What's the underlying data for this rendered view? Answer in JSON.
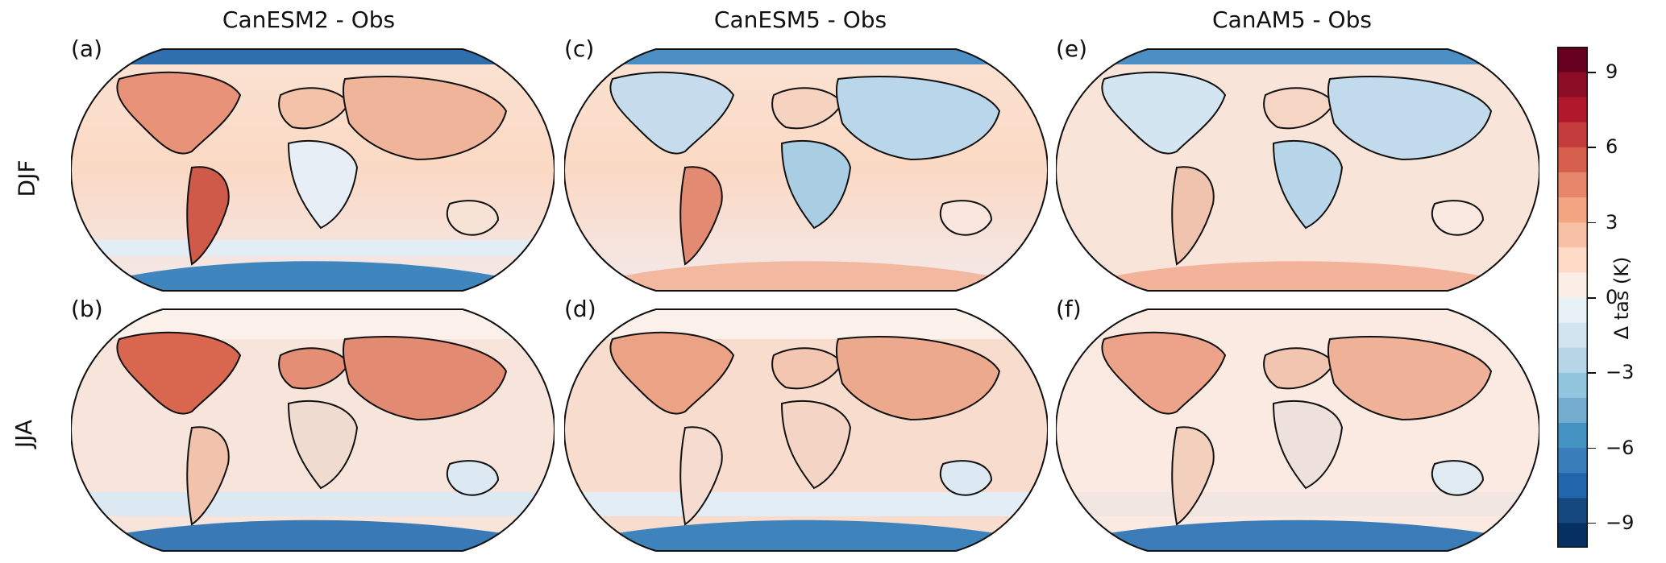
{
  "columns": [
    {
      "title": "CanESM2 - Obs"
    },
    {
      "title": "CanESM5 - Obs"
    },
    {
      "title": "CanAM5 - Obs"
    }
  ],
  "rows": [
    {
      "label": "DJF"
    },
    {
      "label": "JJA"
    }
  ],
  "panels": [
    {
      "label": "(a)",
      "model": "CanESM2",
      "season": "DJF"
    },
    {
      "label": "(c)",
      "model": "CanESM5",
      "season": "DJF"
    },
    {
      "label": "(e)",
      "model": "CanAM5",
      "season": "DJF"
    },
    {
      "label": "(b)",
      "model": "CanESM2",
      "season": "JJA"
    },
    {
      "label": "(d)",
      "model": "CanESM5",
      "season": "JJA"
    },
    {
      "label": "(f)",
      "model": "CanAM5",
      "season": "JJA"
    }
  ],
  "colorbar": {
    "label": "Δ tas (K)",
    "range": [
      -10,
      10
    ],
    "ticks": [
      {
        "value": 9,
        "text": "9"
      },
      {
        "value": 6,
        "text": "6"
      },
      {
        "value": 3,
        "text": "3"
      },
      {
        "value": 0,
        "text": "0"
      },
      {
        "value": -3,
        "text": "−3"
      },
      {
        "value": -6,
        "text": "−6"
      },
      {
        "value": -9,
        "text": "−9"
      }
    ],
    "colors": [
      "#053061",
      "#15487f",
      "#2166ac",
      "#3a7dbb",
      "#4393c3",
      "#74acd0",
      "#92c5de",
      "#b7d7e8",
      "#d1e5f0",
      "#e8f1f6",
      "#faeee6",
      "#fddbc7",
      "#f8c0a4",
      "#f4a582",
      "#e7866a",
      "#d6604d",
      "#c43c3c",
      "#b2182b",
      "#8c0d25",
      "#67001f"
    ]
  }
}
